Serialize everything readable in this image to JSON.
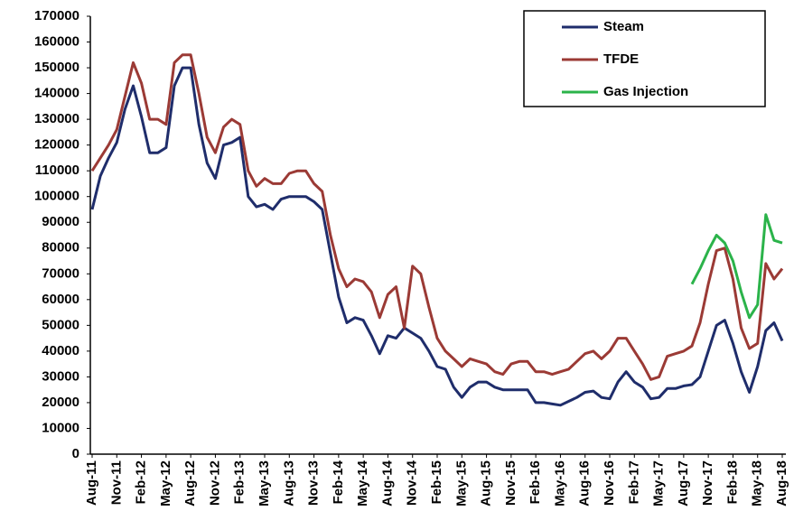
{
  "chart_data": {
    "type": "line",
    "categories": [
      "Aug-11",
      null,
      null,
      "Nov-11",
      null,
      null,
      "Feb-12",
      null,
      null,
      "May-12",
      null,
      null,
      "Aug-12",
      null,
      null,
      "Nov-12",
      null,
      null,
      "Feb-13",
      null,
      null,
      "May-13",
      null,
      null,
      "Aug-13",
      null,
      null,
      "Nov-13",
      null,
      null,
      "Feb-14",
      null,
      null,
      "May-14",
      null,
      null,
      "Aug-14",
      null,
      null,
      "Nov-14",
      null,
      null,
      "Feb-15",
      null,
      null,
      "May-15",
      null,
      null,
      "Aug-15",
      null,
      null,
      "Nov-15",
      null,
      null,
      "Feb-16",
      null,
      null,
      "May-16",
      null,
      null,
      "Aug-16",
      null,
      null,
      "Nov-16",
      null,
      null,
      "Feb-17",
      null,
      null,
      "May-17",
      null,
      null,
      "Aug-17",
      null,
      null,
      "Nov-17",
      null,
      null,
      "Feb-18",
      null,
      null,
      "May-18",
      null,
      null,
      "Aug-18"
    ],
    "series": [
      {
        "name": "Steam",
        "color": "#1f2d6b",
        "values": [
          95000,
          108000,
          115000,
          121000,
          134000,
          143000,
          131000,
          117000,
          117000,
          119000,
          143000,
          150000,
          150000,
          128000,
          113000,
          107000,
          120000,
          121000,
          123000,
          100000,
          96000,
          97000,
          95000,
          99000,
          100000,
          100000,
          100000,
          98000,
          95000,
          78000,
          61000,
          51000,
          53000,
          52000,
          46000,
          39000,
          46000,
          45000,
          49000,
          47000,
          45000,
          40000,
          34000,
          33000,
          26000,
          22000,
          26000,
          28000,
          28000,
          26000,
          25000,
          25000,
          25000,
          25000,
          20000,
          20000,
          19500,
          19000,
          20500,
          22000,
          24000,
          24500,
          22000,
          21500,
          28000,
          32000,
          28000,
          26000,
          21500,
          22000,
          25500,
          25500,
          26500,
          27000,
          30000,
          40000,
          50000,
          52000,
          43000,
          32000,
          24000,
          34000,
          48000,
          51000,
          44000
        ]
      },
      {
        "name": "TFDE",
        "color": "#9b3a35",
        "values": [
          110000,
          115000,
          120000,
          126000,
          139000,
          152000,
          144000,
          130000,
          130000,
          128000,
          152000,
          155000,
          155000,
          140000,
          123000,
          117000,
          127000,
          130000,
          128000,
          110000,
          104000,
          107000,
          105000,
          105000,
          109000,
          110000,
          110000,
          105000,
          102000,
          85000,
          72000,
          65000,
          68000,
          67000,
          63000,
          53000,
          62000,
          65000,
          49000,
          73000,
          70000,
          57000,
          45000,
          40000,
          37000,
          34000,
          37000,
          36000,
          35000,
          32000,
          31000,
          35000,
          36000,
          36000,
          32000,
          32000,
          31000,
          32000,
          33000,
          36000,
          39000,
          40000,
          37000,
          40000,
          45000,
          45000,
          40000,
          35000,
          29000,
          30000,
          38000,
          39000,
          40000,
          42000,
          51000,
          66000,
          79000,
          80000,
          68000,
          49000,
          41000,
          43000,
          74000,
          68000,
          72000
        ]
      },
      {
        "name": "Gas Injection",
        "color": "#2bb34a",
        "values": [
          null,
          null,
          null,
          null,
          null,
          null,
          null,
          null,
          null,
          null,
          null,
          null,
          null,
          null,
          null,
          null,
          null,
          null,
          null,
          null,
          null,
          null,
          null,
          null,
          null,
          null,
          null,
          null,
          null,
          null,
          null,
          null,
          null,
          null,
          null,
          null,
          null,
          null,
          null,
          null,
          null,
          null,
          null,
          null,
          null,
          null,
          null,
          null,
          null,
          null,
          null,
          null,
          null,
          null,
          null,
          null,
          null,
          null,
          null,
          null,
          null,
          null,
          null,
          null,
          null,
          null,
          null,
          null,
          null,
          null,
          null,
          null,
          null,
          66000,
          72000,
          79000,
          85000,
          82000,
          75000,
          63000,
          53000,
          58000,
          93000,
          83000,
          82000
        ]
      }
    ],
    "ylim": [
      0,
      170000
    ],
    "yticks": [
      0,
      10000,
      20000,
      30000,
      40000,
      50000,
      60000,
      70000,
      80000,
      90000,
      100000,
      110000,
      120000,
      130000,
      140000,
      150000,
      160000,
      170000
    ],
    "legend": "top-right"
  }
}
